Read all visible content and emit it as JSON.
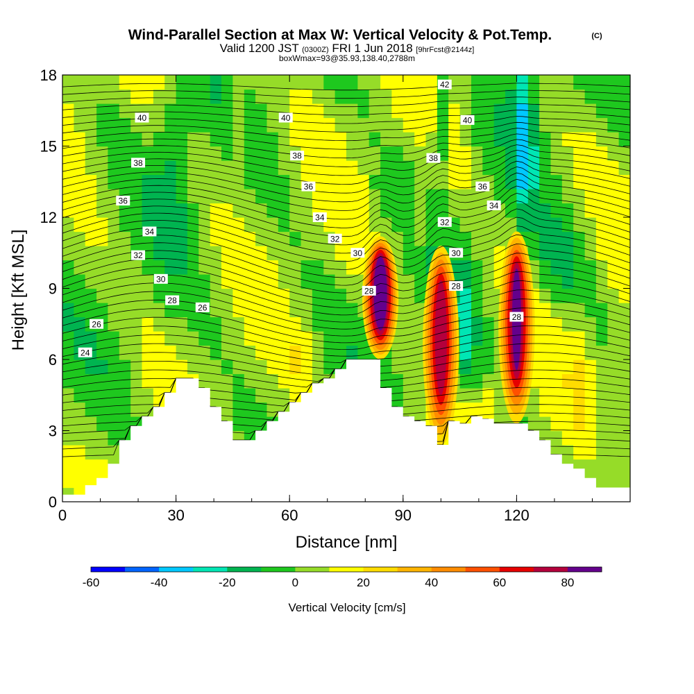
{
  "chart_data": {
    "type": "heatmap",
    "title": "Wind-Parallel Section at Max W: Vertical Velocity & Pot.Temp.",
    "title_mark": "(C)",
    "subtitle_parts": [
      "Valid 1200 JST",
      "(0300Z)",
      "FRI 1 Jun 2018",
      "[9hrFcst@2144z]"
    ],
    "subtitle2": "boxWmax=93@35.93,138.40,2788m",
    "xlabel": "Distance [nm]",
    "ylabel": "Height [Kft MSL]",
    "xlim": [
      0,
      150
    ],
    "ylim": [
      0,
      18
    ],
    "x_ticks": [
      0,
      30,
      60,
      90,
      120
    ],
    "y_ticks": [
      0,
      3,
      6,
      9,
      12,
      15,
      18
    ],
    "terrain_profile": {
      "x": [
        0,
        6,
        6,
        9,
        9,
        12,
        12,
        15,
        15,
        18,
        18,
        21,
        21,
        24,
        24,
        27,
        27,
        30,
        30,
        33,
        33,
        36,
        36,
        39,
        39,
        42,
        42,
        45,
        45,
        48,
        48,
        51,
        51,
        54,
        54,
        57,
        57,
        60,
        60,
        63,
        63,
        66,
        66,
        69,
        69,
        72,
        72,
        75,
        75,
        78,
        78,
        84,
        84,
        87,
        87,
        90,
        90,
        93,
        93,
        96,
        96,
        99,
        99,
        102,
        102,
        105,
        105,
        108,
        108,
        111,
        111,
        114,
        114,
        117,
        117,
        123,
        123,
        126,
        126,
        129,
        129,
        132,
        132,
        135,
        135,
        138,
        138,
        141,
        141,
        144,
        144,
        147,
        147,
        150
      ],
      "y": [
        0.3,
        0.3,
        0.7,
        0.7,
        1.0,
        1.0,
        1.6,
        1.6,
        2.6,
        2.6,
        3.2,
        3.2,
        3.6,
        3.6,
        4.0,
        4.0,
        4.6,
        4.6,
        5.2,
        5.2,
        5.2,
        5.2,
        4.8,
        4.8,
        4.0,
        4.0,
        3.4,
        3.4,
        2.6,
        2.6,
        2.6,
        2.6,
        3.0,
        3.0,
        3.4,
        3.4,
        3.8,
        3.8,
        4.2,
        4.2,
        4.6,
        4.6,
        5.0,
        5.0,
        5.2,
        5.2,
        5.6,
        5.6,
        6.0,
        6.0,
        6.0,
        6.0,
        4.8,
        4.8,
        4.0,
        4.0,
        3.6,
        3.6,
        3.4,
        3.4,
        3.2,
        3.2,
        2.4,
        2.4,
        3.4,
        3.4,
        3.3,
        3.3,
        3.6,
        3.6,
        3.5,
        3.5,
        3.3,
        3.3,
        3.3,
        3.3,
        3.0,
        3.0,
        2.6,
        2.6,
        2.0,
        2.0,
        1.6,
        1.6,
        1.4,
        1.4,
        1.0,
        1.0,
        0.6,
        0.6,
        0.6,
        0.6,
        0.6,
        0.6
      ]
    },
    "w_updraft_cores": [
      {
        "x": 84,
        "y_bottom": 6.0,
        "y_top": 11.2,
        "w_max": 93
      },
      {
        "x": 100,
        "y_bottom": 2.4,
        "y_top": 10.8,
        "w_max": 75
      },
      {
        "x": 120,
        "y_bottom": 3.3,
        "y_top": 11.4,
        "w_max": 80
      }
    ],
    "isentrope_labels": [
      {
        "x": 6,
        "y": 6.3,
        "text": "24"
      },
      {
        "x": 9,
        "y": 7.5,
        "text": "26"
      },
      {
        "x": 37,
        "y": 8.2,
        "text": "26"
      },
      {
        "x": 29,
        "y": 8.5,
        "text": "28"
      },
      {
        "x": 81,
        "y": 8.9,
        "text": "28"
      },
      {
        "x": 104,
        "y": 9.1,
        "text": "28"
      },
      {
        "x": 120,
        "y": 7.8,
        "text": "28"
      },
      {
        "x": 26,
        "y": 9.4,
        "text": "30"
      },
      {
        "x": 78,
        "y": 10.5,
        "text": "30"
      },
      {
        "x": 104,
        "y": 10.5,
        "text": "30"
      },
      {
        "x": 20,
        "y": 10.4,
        "text": "32"
      },
      {
        "x": 72,
        "y": 11.1,
        "text": "32"
      },
      {
        "x": 101,
        "y": 11.8,
        "text": "32"
      },
      {
        "x": 23,
        "y": 11.4,
        "text": "34"
      },
      {
        "x": 68,
        "y": 12.0,
        "text": "34"
      },
      {
        "x": 114,
        "y": 12.5,
        "text": "34"
      },
      {
        "x": 16,
        "y": 12.7,
        "text": "36"
      },
      {
        "x": 65,
        "y": 13.3,
        "text": "36"
      },
      {
        "x": 111,
        "y": 13.3,
        "text": "36"
      },
      {
        "x": 20,
        "y": 14.3,
        "text": "38"
      },
      {
        "x": 62,
        "y": 14.6,
        "text": "38"
      },
      {
        "x": 98,
        "y": 14.5,
        "text": "38"
      },
      {
        "x": 21,
        "y": 16.2,
        "text": "40"
      },
      {
        "x": 59,
        "y": 16.2,
        "text": "40"
      },
      {
        "x": 107,
        "y": 16.1,
        "text": "40"
      },
      {
        "x": 101,
        "y": 17.6,
        "text": "42"
      }
    ],
    "colorbar": {
      "label": "Vertical Velocity [cm/s]",
      "ticks": [
        "-60",
        "-40",
        "-20",
        "0",
        "20",
        "40",
        "60",
        "80"
      ],
      "bounds": [
        -60,
        -50,
        -40,
        -30,
        -20,
        -10,
        0,
        10,
        20,
        30,
        40,
        50,
        60,
        70,
        80,
        90
      ],
      "colors": [
        "#0000ff",
        "#0064ff",
        "#00c8ff",
        "#00e6b4",
        "#00b450",
        "#1ec81e",
        "#96dc28",
        "#ffff00",
        "#ffdc00",
        "#ffb400",
        "#ff8c00",
        "#ff5000",
        "#e60000",
        "#b4003c",
        "#64008c"
      ]
    }
  }
}
